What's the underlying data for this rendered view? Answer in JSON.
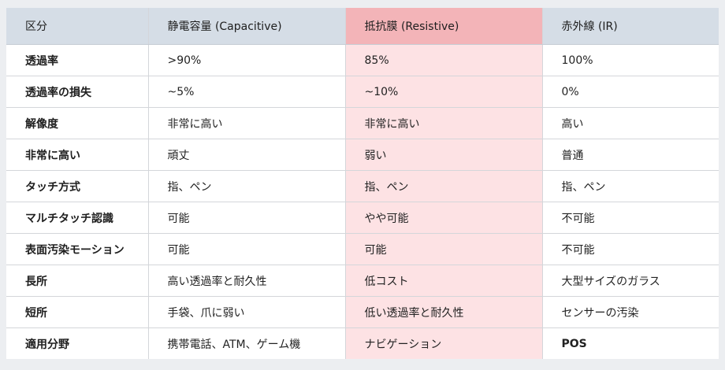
{
  "table": {
    "headers": [
      "区分",
      "静電容量 (Capacitive)",
      "抵抗膜 (Resistive)",
      "赤外線 (IR)"
    ],
    "rows": [
      [
        "透過率",
        ">90%",
        "85%",
        "100%"
      ],
      [
        "透過率の損失",
        "~5%",
        "~10%",
        "0%"
      ],
      [
        "解像度",
        "非常に高い",
        "非常に高い",
        "高い"
      ],
      [
        "非常に高い",
        "頑丈",
        "弱い",
        "普通"
      ],
      [
        "タッチ方式",
        "指、ペン",
        "指、ペン",
        "指、ペン"
      ],
      [
        "マルチタッチ認識",
        "可能",
        "やや可能",
        "不可能"
      ],
      [
        "表面汚染モーション",
        "可能",
        "可能",
        "不可能"
      ],
      [
        "長所",
        "高い透過率と耐久性",
        "低コスト",
        "大型サイズのガラス"
      ],
      [
        "短所",
        "手袋、爪に弱い",
        "低い透過率と耐久性",
        "センサーの汚染"
      ],
      [
        "適用分野",
        "携帯電話、ATM、ゲーム機",
        "ナビゲーション",
        "POS"
      ]
    ]
  },
  "colors": {
    "header_bg": "#d5dde6",
    "highlight_header_bg": "#f3b4b8",
    "highlight_cell_bg": "#fde2e4",
    "border": "#d4d6da"
  }
}
